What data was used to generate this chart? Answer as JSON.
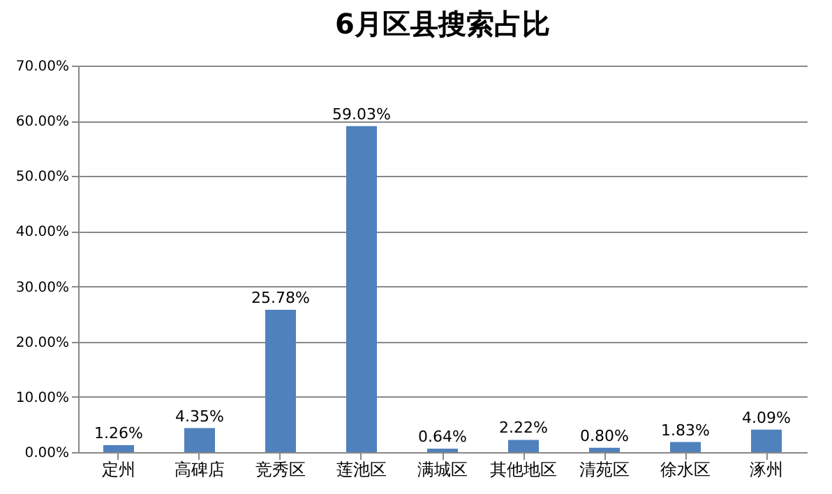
{
  "chart_data": {
    "type": "bar",
    "title": "6月区县搜索占比",
    "categories": [
      "定州",
      "高碑店",
      "竞秀区",
      "莲池区",
      "满城区",
      "其他地区",
      "清苑区",
      "徐水区",
      "涿州"
    ],
    "values": [
      1.26,
      4.35,
      25.78,
      59.03,
      0.64,
      2.22,
      0.8,
      1.83,
      4.09
    ],
    "value_labels": [
      "1.26%",
      "4.35%",
      "25.78%",
      "59.03%",
      "0.64%",
      "2.22%",
      "0.80%",
      "1.83%",
      "4.09%"
    ],
    "color": "#4f81bd",
    "ylim": [
      0,
      70
    ],
    "yticks": [
      {
        "value": 0,
        "label": "0.00%"
      },
      {
        "value": 10,
        "label": "10.00%"
      },
      {
        "value": 20,
        "label": "20.00%"
      },
      {
        "value": 30,
        "label": "30.00%"
      },
      {
        "value": 40,
        "label": "40.00%"
      },
      {
        "value": 50,
        "label": "50.00%"
      },
      {
        "value": 60,
        "label": "60.00%"
      },
      {
        "value": 70,
        "label": "70.00%"
      }
    ],
    "grid": "y"
  }
}
